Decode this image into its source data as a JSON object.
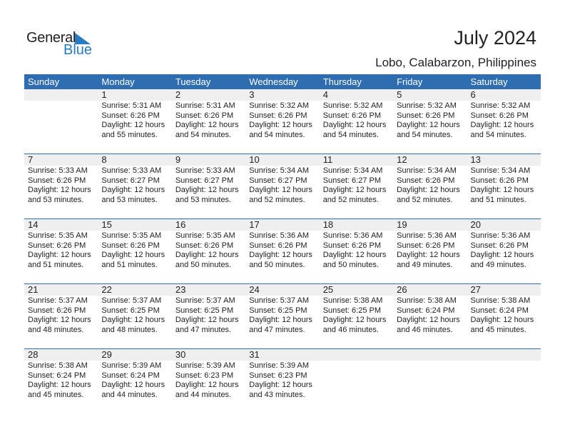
{
  "logo": {
    "line1": "General",
    "line2": "Blue"
  },
  "title": "July 2024",
  "location": "Lobo, Calabarzon, Philippines",
  "colors": {
    "header": "#2e6db0",
    "logo_blue": "#2a7abf",
    "date_band": "#efefef"
  },
  "weekdays": [
    "Sunday",
    "Monday",
    "Tuesday",
    "Wednesday",
    "Thursday",
    "Friday",
    "Saturday"
  ],
  "weeks": [
    [
      null,
      {
        "day": "1",
        "sunrise": "Sunrise: 5:31 AM",
        "sunset": "Sunset: 6:26 PM",
        "daylight1": "Daylight: 12 hours",
        "daylight2": "and 55 minutes."
      },
      {
        "day": "2",
        "sunrise": "Sunrise: 5:31 AM",
        "sunset": "Sunset: 6:26 PM",
        "daylight1": "Daylight: 12 hours",
        "daylight2": "and 54 minutes."
      },
      {
        "day": "3",
        "sunrise": "Sunrise: 5:32 AM",
        "sunset": "Sunset: 6:26 PM",
        "daylight1": "Daylight: 12 hours",
        "daylight2": "and 54 minutes."
      },
      {
        "day": "4",
        "sunrise": "Sunrise: 5:32 AM",
        "sunset": "Sunset: 6:26 PM",
        "daylight1": "Daylight: 12 hours",
        "daylight2": "and 54 minutes."
      },
      {
        "day": "5",
        "sunrise": "Sunrise: 5:32 AM",
        "sunset": "Sunset: 6:26 PM",
        "daylight1": "Daylight: 12 hours",
        "daylight2": "and 54 minutes."
      },
      {
        "day": "6",
        "sunrise": "Sunrise: 5:32 AM",
        "sunset": "Sunset: 6:26 PM",
        "daylight1": "Daylight: 12 hours",
        "daylight2": "and 54 minutes."
      }
    ],
    [
      {
        "day": "7",
        "sunrise": "Sunrise: 5:33 AM",
        "sunset": "Sunset: 6:26 PM",
        "daylight1": "Daylight: 12 hours",
        "daylight2": "and 53 minutes."
      },
      {
        "day": "8",
        "sunrise": "Sunrise: 5:33 AM",
        "sunset": "Sunset: 6:27 PM",
        "daylight1": "Daylight: 12 hours",
        "daylight2": "and 53 minutes."
      },
      {
        "day": "9",
        "sunrise": "Sunrise: 5:33 AM",
        "sunset": "Sunset: 6:27 PM",
        "daylight1": "Daylight: 12 hours",
        "daylight2": "and 53 minutes."
      },
      {
        "day": "10",
        "sunrise": "Sunrise: 5:34 AM",
        "sunset": "Sunset: 6:27 PM",
        "daylight1": "Daylight: 12 hours",
        "daylight2": "and 52 minutes."
      },
      {
        "day": "11",
        "sunrise": "Sunrise: 5:34 AM",
        "sunset": "Sunset: 6:27 PM",
        "daylight1": "Daylight: 12 hours",
        "daylight2": "and 52 minutes."
      },
      {
        "day": "12",
        "sunrise": "Sunrise: 5:34 AM",
        "sunset": "Sunset: 6:26 PM",
        "daylight1": "Daylight: 12 hours",
        "daylight2": "and 52 minutes."
      },
      {
        "day": "13",
        "sunrise": "Sunrise: 5:34 AM",
        "sunset": "Sunset: 6:26 PM",
        "daylight1": "Daylight: 12 hours",
        "daylight2": "and 51 minutes."
      }
    ],
    [
      {
        "day": "14",
        "sunrise": "Sunrise: 5:35 AM",
        "sunset": "Sunset: 6:26 PM",
        "daylight1": "Daylight: 12 hours",
        "daylight2": "and 51 minutes."
      },
      {
        "day": "15",
        "sunrise": "Sunrise: 5:35 AM",
        "sunset": "Sunset: 6:26 PM",
        "daylight1": "Daylight: 12 hours",
        "daylight2": "and 51 minutes."
      },
      {
        "day": "16",
        "sunrise": "Sunrise: 5:35 AM",
        "sunset": "Sunset: 6:26 PM",
        "daylight1": "Daylight: 12 hours",
        "daylight2": "and 50 minutes."
      },
      {
        "day": "17",
        "sunrise": "Sunrise: 5:36 AM",
        "sunset": "Sunset: 6:26 PM",
        "daylight1": "Daylight: 12 hours",
        "daylight2": "and 50 minutes."
      },
      {
        "day": "18",
        "sunrise": "Sunrise: 5:36 AM",
        "sunset": "Sunset: 6:26 PM",
        "daylight1": "Daylight: 12 hours",
        "daylight2": "and 50 minutes."
      },
      {
        "day": "19",
        "sunrise": "Sunrise: 5:36 AM",
        "sunset": "Sunset: 6:26 PM",
        "daylight1": "Daylight: 12 hours",
        "daylight2": "and 49 minutes."
      },
      {
        "day": "20",
        "sunrise": "Sunrise: 5:36 AM",
        "sunset": "Sunset: 6:26 PM",
        "daylight1": "Daylight: 12 hours",
        "daylight2": "and 49 minutes."
      }
    ],
    [
      {
        "day": "21",
        "sunrise": "Sunrise: 5:37 AM",
        "sunset": "Sunset: 6:26 PM",
        "daylight1": "Daylight: 12 hours",
        "daylight2": "and 48 minutes."
      },
      {
        "day": "22",
        "sunrise": "Sunrise: 5:37 AM",
        "sunset": "Sunset: 6:25 PM",
        "daylight1": "Daylight: 12 hours",
        "daylight2": "and 48 minutes."
      },
      {
        "day": "23",
        "sunrise": "Sunrise: 5:37 AM",
        "sunset": "Sunset: 6:25 PM",
        "daylight1": "Daylight: 12 hours",
        "daylight2": "and 47 minutes."
      },
      {
        "day": "24",
        "sunrise": "Sunrise: 5:37 AM",
        "sunset": "Sunset: 6:25 PM",
        "daylight1": "Daylight: 12 hours",
        "daylight2": "and 47 minutes."
      },
      {
        "day": "25",
        "sunrise": "Sunrise: 5:38 AM",
        "sunset": "Sunset: 6:25 PM",
        "daylight1": "Daylight: 12 hours",
        "daylight2": "and 46 minutes."
      },
      {
        "day": "26",
        "sunrise": "Sunrise: 5:38 AM",
        "sunset": "Sunset: 6:24 PM",
        "daylight1": "Daylight: 12 hours",
        "daylight2": "and 46 minutes."
      },
      {
        "day": "27",
        "sunrise": "Sunrise: 5:38 AM",
        "sunset": "Sunset: 6:24 PM",
        "daylight1": "Daylight: 12 hours",
        "daylight2": "and 45 minutes."
      }
    ],
    [
      {
        "day": "28",
        "sunrise": "Sunrise: 5:38 AM",
        "sunset": "Sunset: 6:24 PM",
        "daylight1": "Daylight: 12 hours",
        "daylight2": "and 45 minutes."
      },
      {
        "day": "29",
        "sunrise": "Sunrise: 5:39 AM",
        "sunset": "Sunset: 6:24 PM",
        "daylight1": "Daylight: 12 hours",
        "daylight2": "and 44 minutes."
      },
      {
        "day": "30",
        "sunrise": "Sunrise: 5:39 AM",
        "sunset": "Sunset: 6:23 PM",
        "daylight1": "Daylight: 12 hours",
        "daylight2": "and 44 minutes."
      },
      {
        "day": "31",
        "sunrise": "Sunrise: 5:39 AM",
        "sunset": "Sunset: 6:23 PM",
        "daylight1": "Daylight: 12 hours",
        "daylight2": "and 43 minutes."
      },
      null,
      null,
      null
    ]
  ]
}
